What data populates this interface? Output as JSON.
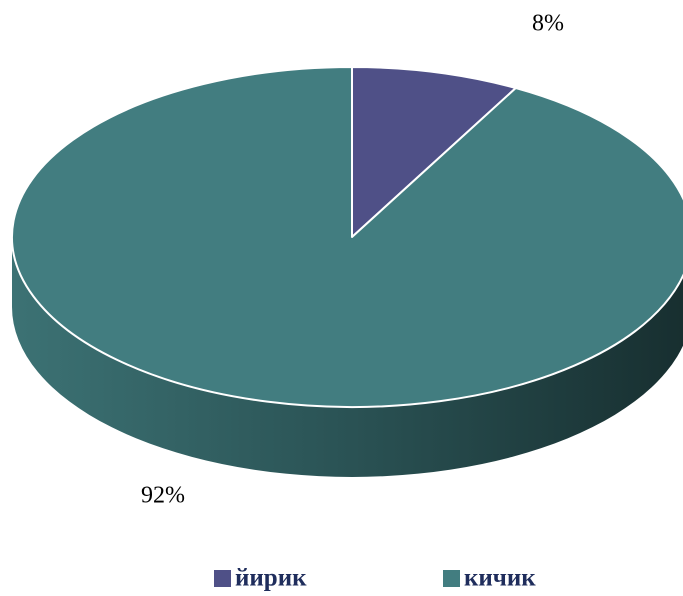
{
  "chart_data": {
    "type": "pie3d",
    "categories": [
      "йирик",
      "кичик"
    ],
    "values": [
      8,
      92
    ],
    "value_labels": [
      "8%",
      "92%"
    ],
    "colors": [
      "#4f5087",
      "#427d80"
    ],
    "legend": "bottom"
  }
}
